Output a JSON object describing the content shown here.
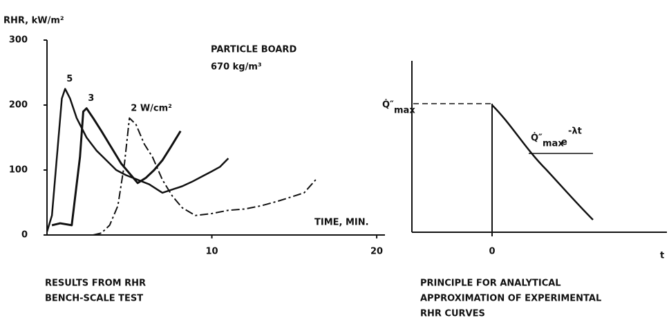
{
  "chart_data": {
    "type": "line",
    "ylabel": "RHR, kW/m²",
    "xlabel": "TIME, MIN.",
    "annotations": [
      "PARTICLE BOARD",
      "670 kg/m³"
    ],
    "caption": [
      "RESULTS FROM  RHR",
      "BENCH-SCALE TEST"
    ],
    "xlim": [
      0,
      20.5
    ],
    "xticks": [
      10,
      20
    ],
    "ylim": [
      0,
      300
    ],
    "yticks": [
      0,
      100,
      200,
      300
    ],
    "series": [
      {
        "name": "5",
        "color": "#111111",
        "dash": "solid",
        "width": 2.5,
        "x": [
          0,
          0.3,
          0.6,
          0.9,
          1.1,
          1.4,
          1.8,
          2.4,
          3.0,
          3.6,
          4.2,
          4.8,
          5.5,
          6.2,
          7.0,
          7.6,
          8.2,
          8.8,
          9.4,
          10.0,
          10.5,
          11.0
        ],
        "values": [
          5,
          30,
          120,
          210,
          225,
          210,
          180,
          150,
          130,
          115,
          100,
          92,
          85,
          78,
          65,
          70,
          75,
          82,
          90,
          98,
          105,
          118
        ]
      },
      {
        "name": "3",
        "color": "#111111",
        "dash": "solid",
        "width": 3,
        "x": [
          0.3,
          0.8,
          1.5,
          2.0,
          2.2,
          2.4,
          2.8,
          3.3,
          3.9,
          4.5,
          5.0,
          5.5,
          6.0,
          6.5,
          7.0,
          7.5,
          8.1
        ],
        "values": [
          15,
          18,
          15,
          120,
          190,
          195,
          180,
          160,
          135,
          110,
          95,
          80,
          88,
          100,
          115,
          135,
          160
        ]
      },
      {
        "name": "2 W/cm²",
        "color": "#111111",
        "dash": "dash-dot",
        "width": 2,
        "x": [
          2.8,
          3.3,
          3.8,
          4.3,
          4.7,
          5.0,
          5.4,
          5.9,
          6.4,
          7.0,
          7.6,
          8.2,
          9.0,
          10.0,
          11.0,
          12.0,
          13.0,
          14.0,
          15.0,
          15.6,
          16.3
        ],
        "values": [
          0,
          3,
          15,
          45,
          110,
          180,
          170,
          140,
          120,
          85,
          60,
          42,
          30,
          33,
          38,
          40,
          45,
          52,
          60,
          65,
          85
        ]
      }
    ]
  },
  "principle_panel": {
    "y_symbol": "Q̇″",
    "y_subscript": "max",
    "formula_symbol": "Q̇″",
    "formula_subscript": "max",
    "formula_e": "e",
    "formula_exponent": "-λt",
    "x_tick": "0",
    "x_axis_label": "t",
    "caption": [
      "PRINCIPLE  FOR  ANALYTICAL",
      "APPROXIMATION   OF  EXPERIMENTAL",
      "RHR  CURVES"
    ]
  }
}
